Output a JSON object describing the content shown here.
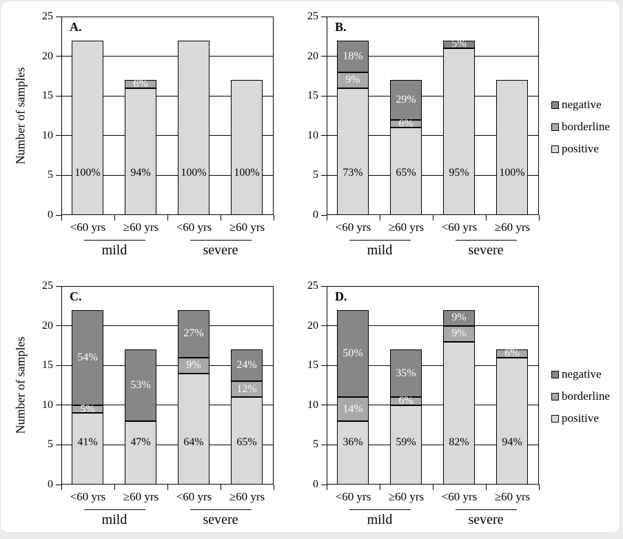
{
  "figure": {
    "y_axis": {
      "title": "Number of samples",
      "ticks": [
        0,
        5,
        10,
        15,
        20,
        25
      ],
      "max": 25
    },
    "legend": {
      "items": [
        {
          "series": "negative",
          "label": "negative"
        },
        {
          "series": "borderline",
          "label": "borderline"
        },
        {
          "series": "positive",
          "label": "positive"
        }
      ]
    },
    "colors": {
      "positive": "#d9d9d9",
      "borderline": "#a9a9a9",
      "negative": "#878787",
      "axis": "#000000",
      "label_on_dark": "#ffffff",
      "label_on_light": "#000000"
    },
    "chart_data": [
      {
        "type": "bar",
        "stacked": true,
        "panel_label": "A.",
        "ylabel": "Number of samples",
        "ylim": [
          0,
          25
        ],
        "categories": [
          "<60 yrs",
          "≥60 yrs",
          "<60 yrs",
          "≥60 yrs"
        ],
        "groups": [
          {
            "label": "mild",
            "cats": [
              0,
              1
            ]
          },
          {
            "label": "severe",
            "cats": [
              2,
              3
            ]
          }
        ],
        "ylabel_shown": true,
        "legend_shown": false,
        "series": [
          {
            "name": "positive",
            "values": [
              22,
              16,
              22,
              17
            ],
            "labels": [
              "100%",
              "94%",
              "100%",
              "100%"
            ]
          },
          {
            "name": "borderline",
            "values": [
              0,
              1,
              0,
              0
            ],
            "labels": [
              "",
              "6%",
              "",
              ""
            ]
          },
          {
            "name": "negative",
            "values": [
              0,
              0,
              0,
              0
            ],
            "labels": [
              "",
              "",
              "",
              ""
            ]
          }
        ]
      },
      {
        "type": "bar",
        "stacked": true,
        "panel_label": "B.",
        "ylabel": "Number of samples",
        "ylim": [
          0,
          25
        ],
        "categories": [
          "<60 yrs",
          "≥60 yrs",
          "<60 yrs",
          "≥60 yrs"
        ],
        "groups": [
          {
            "label": "mild",
            "cats": [
              0,
              1
            ]
          },
          {
            "label": "severe",
            "cats": [
              2,
              3
            ]
          }
        ],
        "ylabel_shown": false,
        "legend_shown": true,
        "series": [
          {
            "name": "positive",
            "values": [
              16,
              11,
              21,
              17
            ],
            "labels": [
              "73%",
              "65%",
              "95%",
              "100%"
            ]
          },
          {
            "name": "borderline",
            "values": [
              2,
              1,
              0,
              0
            ],
            "labels": [
              "9%",
              "6%",
              "",
              ""
            ]
          },
          {
            "name": "negative",
            "values": [
              4,
              5,
              1,
              0
            ],
            "labels": [
              "18%",
              "29%",
              "5%",
              ""
            ]
          }
        ]
      },
      {
        "type": "bar",
        "stacked": true,
        "panel_label": "C.",
        "ylabel": "Number of samples",
        "ylim": [
          0,
          25
        ],
        "categories": [
          "<60 yrs",
          "≥60 yrs",
          "<60 yrs",
          "≥60 yrs"
        ],
        "groups": [
          {
            "label": "mild",
            "cats": [
              0,
              1
            ]
          },
          {
            "label": "severe",
            "cats": [
              2,
              3
            ]
          }
        ],
        "ylabel_shown": true,
        "legend_shown": false,
        "series": [
          {
            "name": "positive",
            "values": [
              9,
              8,
              14,
              11
            ],
            "labels": [
              "41%",
              "47%",
              "64%",
              "65%"
            ]
          },
          {
            "name": "borderline",
            "values": [
              1,
              0,
              2,
              2
            ],
            "labels": [
              "5%",
              "",
              "9%",
              "12%"
            ]
          },
          {
            "name": "negative",
            "values": [
              12,
              9,
              6,
              4
            ],
            "labels": [
              "54%",
              "53%",
              "27%",
              "24%"
            ]
          }
        ]
      },
      {
        "type": "bar",
        "stacked": true,
        "panel_label": "D.",
        "ylabel": "Number of samples",
        "ylim": [
          0,
          25
        ],
        "categories": [
          "<60 yrs",
          "≥60 yrs",
          "<60 yrs",
          "≥60 yrs"
        ],
        "groups": [
          {
            "label": "mild",
            "cats": [
              0,
              1
            ]
          },
          {
            "label": "severe",
            "cats": [
              2,
              3
            ]
          }
        ],
        "ylabel_shown": false,
        "legend_shown": true,
        "series": [
          {
            "name": "positive",
            "values": [
              8,
              10,
              18,
              16
            ],
            "labels": [
              "36%",
              "59%",
              "82%",
              "94%"
            ]
          },
          {
            "name": "borderline",
            "values": [
              3,
              1,
              2,
              1
            ],
            "labels": [
              "14%",
              "6%",
              "9%",
              "6%"
            ]
          },
          {
            "name": "negative",
            "values": [
              11,
              6,
              2,
              0
            ],
            "labels": [
              "50%",
              "35%",
              "9%",
              ""
            ]
          }
        ]
      }
    ]
  }
}
